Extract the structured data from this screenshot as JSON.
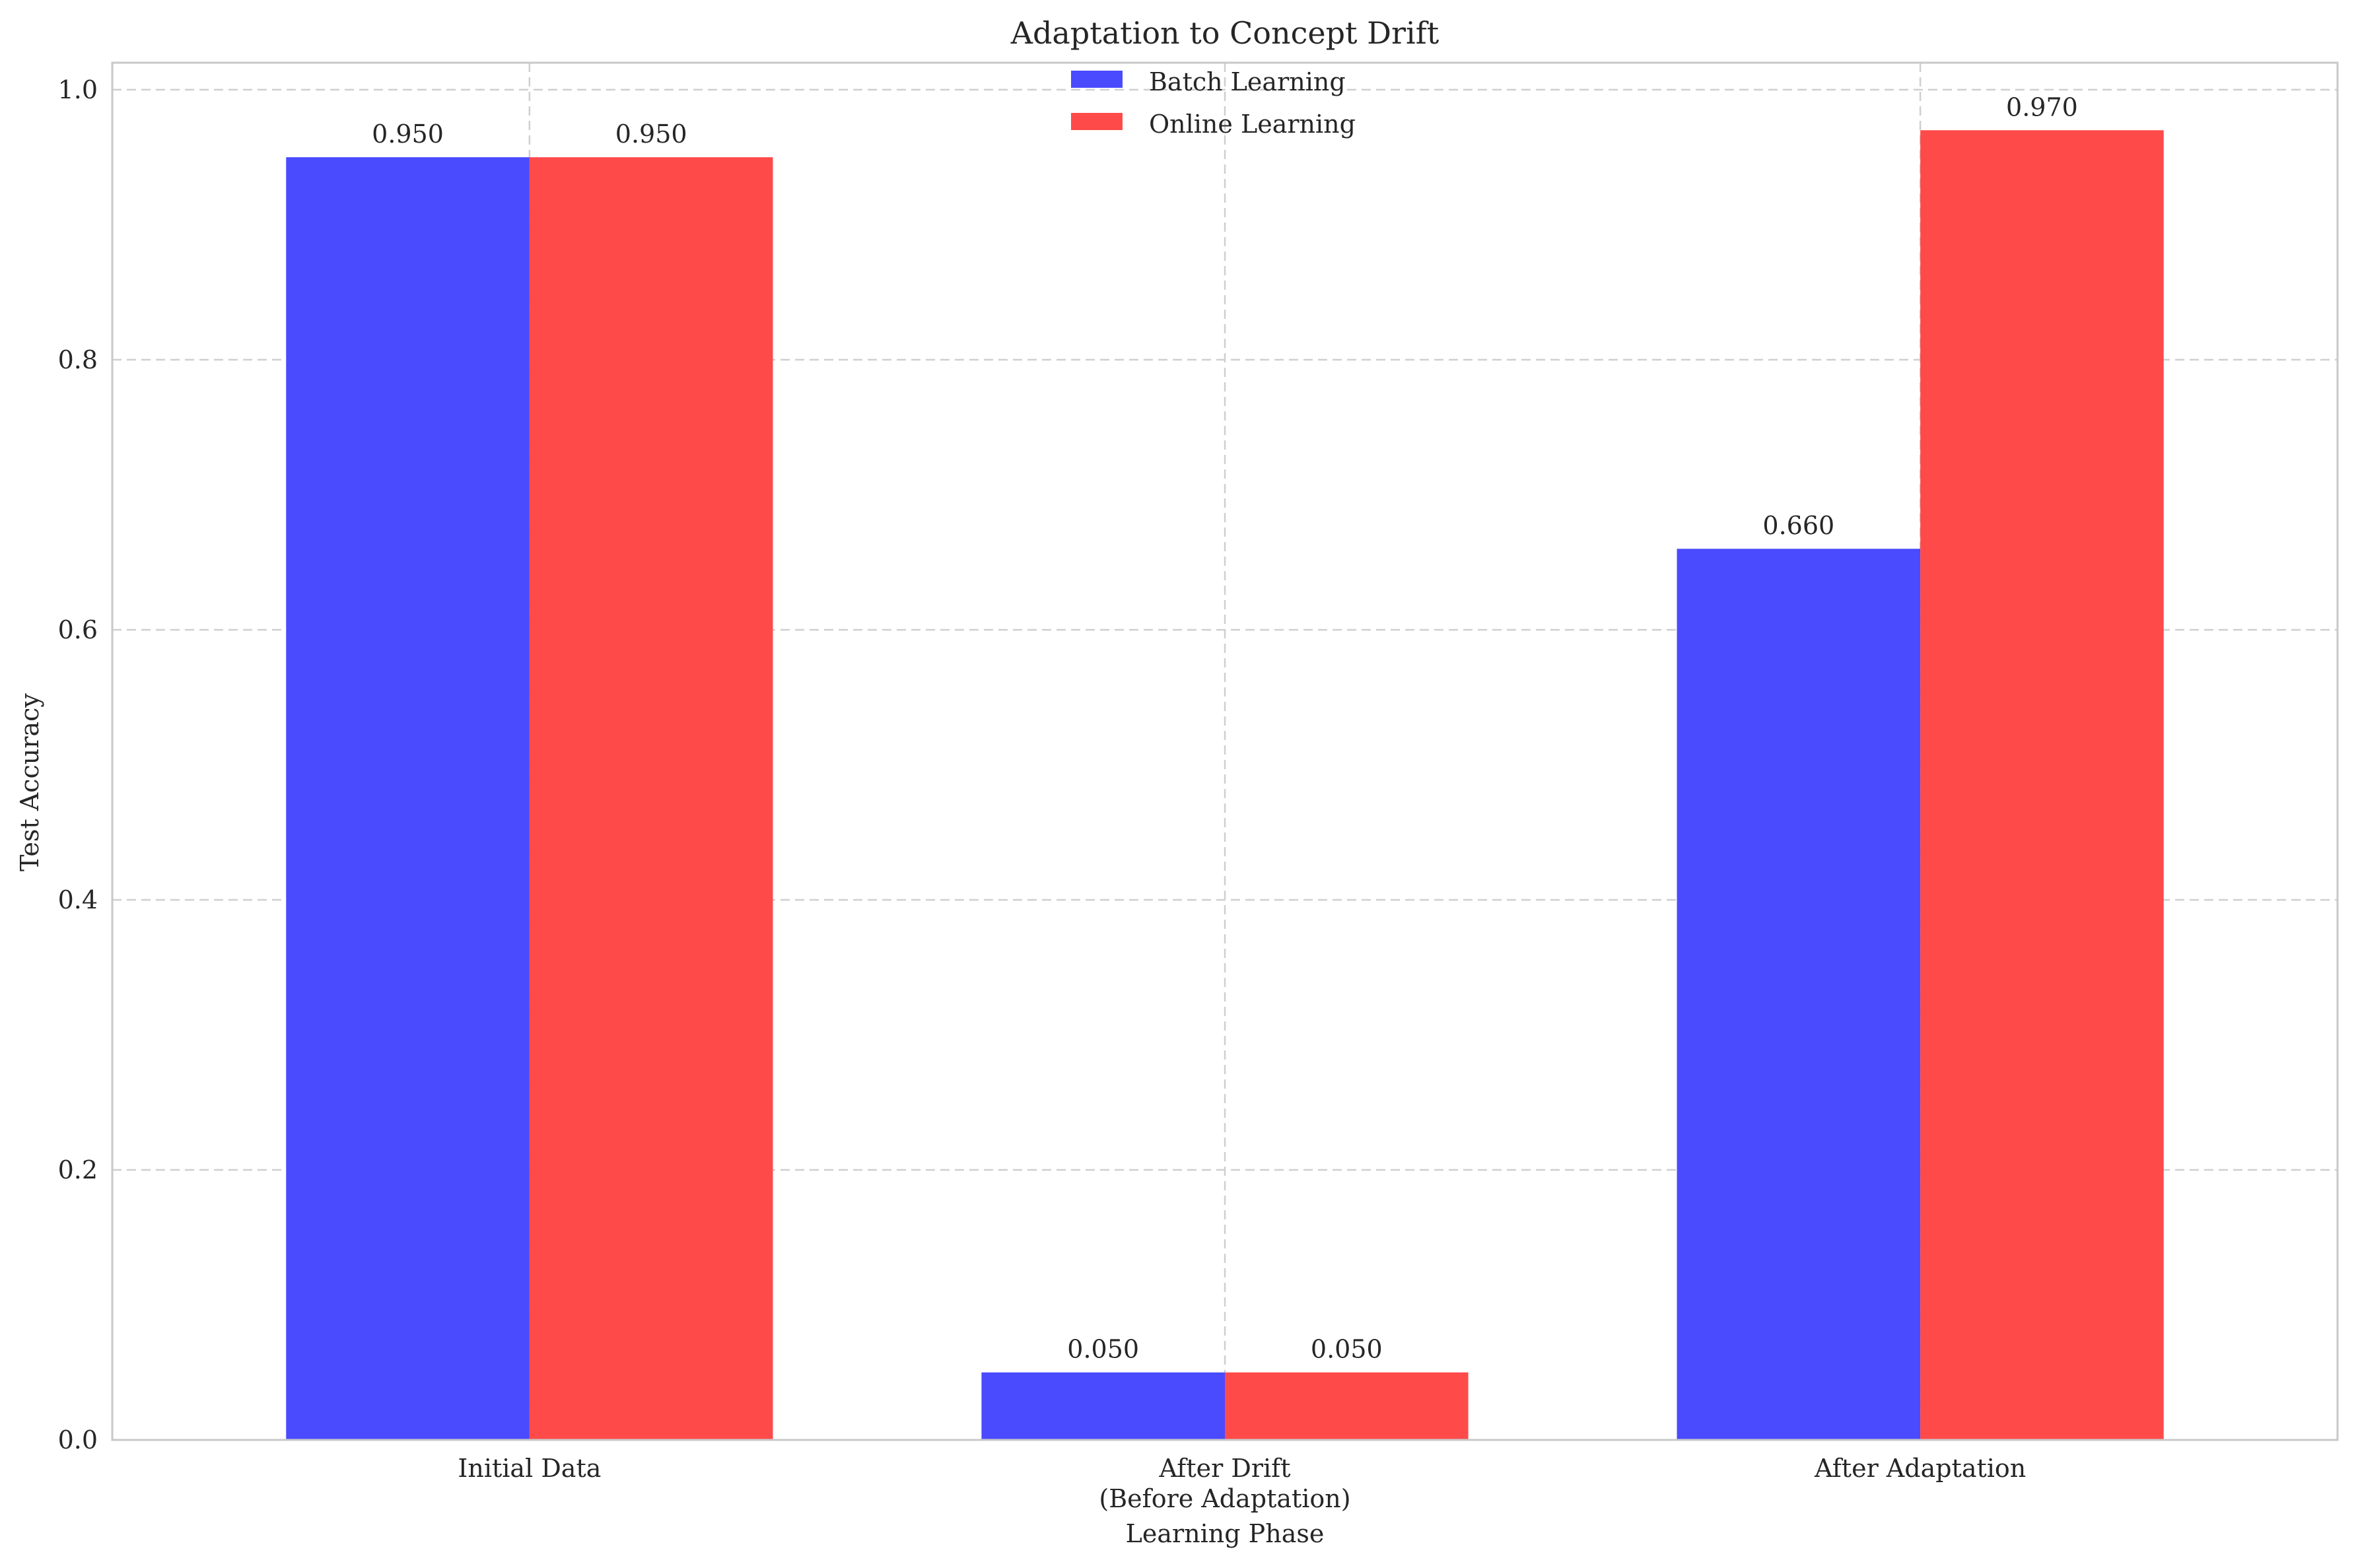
{
  "chart_data": {
    "type": "bar",
    "title": "Adaptation to Concept Drift",
    "xlabel": "Learning Phase",
    "ylabel": "Test Accuracy",
    "categories": [
      "Initial Data",
      "After Drift\n(Before Adaptation)",
      "After Adaptation"
    ],
    "series": [
      {
        "name": "Batch Learning",
        "values": [
          0.95,
          0.05,
          0.66
        ],
        "labels": [
          "0.950",
          "0.050",
          "0.660"
        ],
        "color": "#4a4aff"
      },
      {
        "name": "Online Learning",
        "values": [
          0.95,
          0.05,
          0.97
        ],
        "labels": [
          "0.950",
          "0.050",
          "0.970"
        ],
        "color": "#ff4a4a"
      }
    ],
    "ylim": [
      0,
      1.02
    ],
    "yticks": [
      "0.0",
      "0.2",
      "0.4",
      "0.6",
      "0.8",
      "1.0"
    ],
    "ytick_values": [
      0,
      0.2,
      0.4,
      0.6,
      0.8,
      1.0
    ],
    "grid": true,
    "legend_position": "top-center"
  }
}
